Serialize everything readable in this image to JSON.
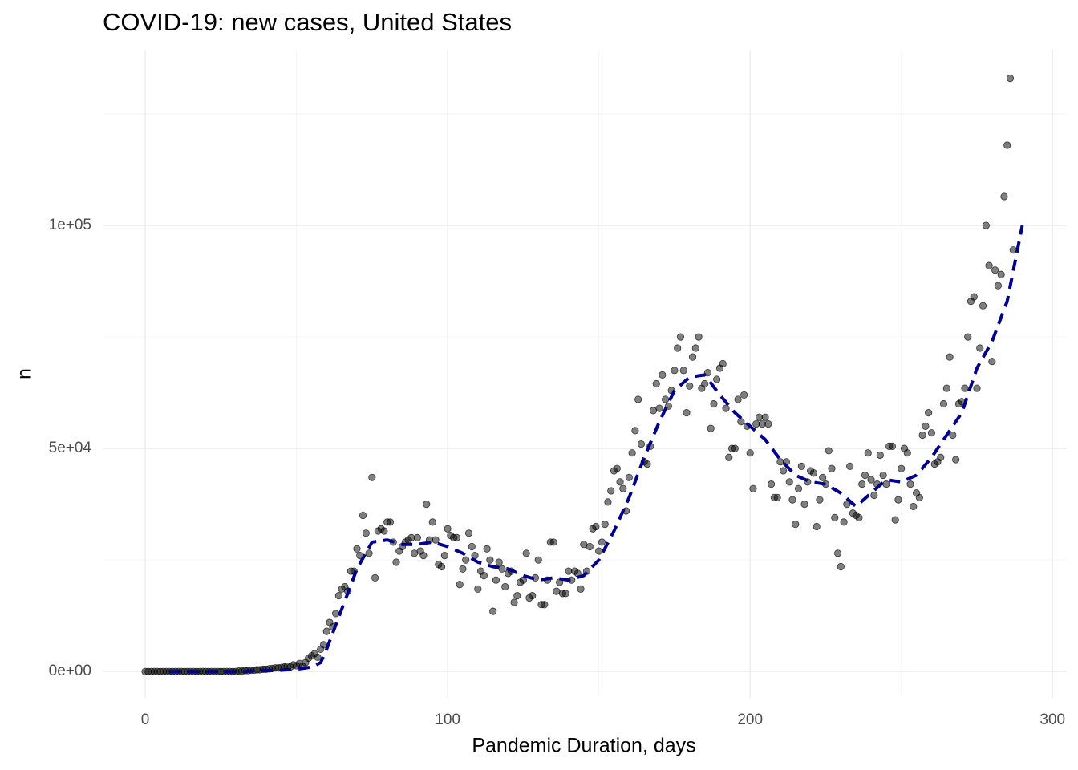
{
  "chart_data": {
    "type": "scatter",
    "title": "COVID-19: new cases, United States",
    "x_label": "Pandemic Duration, days",
    "y_label": "n",
    "xlim": [
      -14.06,
      304.7
    ],
    "ylim": [
      -5900,
      139400
    ],
    "xticks": [
      0,
      100,
      200,
      300
    ],
    "yticks": [
      {
        "value": 0,
        "label": "0e+00"
      },
      {
        "value": 50000,
        "label": "5e+04"
      },
      {
        "value": 100000,
        "label": "1e+05"
      }
    ],
    "minor_xticks": [
      50,
      150,
      250
    ],
    "minor_yticks": [
      25000,
      75000,
      125000
    ],
    "grid": true,
    "color": "#000000",
    "x": [
      0,
      1,
      2,
      3,
      4,
      5,
      6,
      7,
      8,
      9,
      10,
      11,
      12,
      13,
      14,
      15,
      16,
      17,
      18,
      19,
      20,
      21,
      22,
      23,
      24,
      25,
      26,
      27,
      28,
      29,
      30,
      31,
      32,
      33,
      34,
      35,
      36,
      37,
      38,
      39,
      40,
      41,
      42,
      43,
      44,
      45,
      46,
      47,
      48,
      49,
      50,
      51,
      52,
      53,
      54,
      55,
      56,
      57,
      58,
      59,
      60,
      61,
      62,
      63,
      64,
      65,
      66,
      67,
      68,
      69,
      70,
      71,
      72,
      73,
      74,
      75,
      76,
      77,
      78,
      79,
      80,
      81,
      82,
      83,
      84,
      85,
      86,
      87,
      88,
      89,
      90,
      91,
      92,
      93,
      94,
      95,
      96,
      97,
      98,
      99,
      100,
      101,
      102,
      103,
      104,
      105,
      106,
      107,
      108,
      109,
      110,
      111,
      112,
      113,
      114,
      115,
      116,
      117,
      118,
      119,
      120,
      121,
      122,
      123,
      124,
      125,
      126,
      127,
      128,
      129,
      130,
      131,
      132,
      133,
      134,
      135,
      136,
      137,
      138,
      139,
      140,
      141,
      142,
      143,
      144,
      145,
      146,
      147,
      148,
      149,
      150,
      151,
      152,
      153,
      154,
      155,
      156,
      157,
      158,
      159,
      160,
      161,
      162,
      163,
      164,
      165,
      166,
      167,
      168,
      169,
      170,
      171,
      172,
      173,
      174,
      175,
      176,
      177,
      178,
      179,
      180,
      181,
      182,
      183,
      184,
      185,
      186,
      187,
      188,
      189,
      190,
      191,
      192,
      193,
      194,
      195,
      196,
      197,
      198,
      199,
      200,
      201,
      202,
      203,
      204,
      205,
      206,
      207,
      208,
      209,
      210,
      211,
      212,
      213,
      214,
      215,
      216,
      217,
      218,
      219,
      220,
      221,
      222,
      223,
      224,
      225,
      226,
      227,
      228,
      229,
      230,
      231,
      232,
      233,
      234,
      235,
      236,
      237,
      238,
      239,
      240,
      241,
      242,
      243,
      244,
      245,
      246,
      247,
      248,
      249,
      250,
      251,
      252,
      253,
      254,
      255,
      256,
      257,
      258,
      259,
      260,
      261,
      262,
      263,
      264,
      265,
      266,
      267,
      268,
      269,
      270,
      271,
      272,
      273,
      274,
      275,
      276,
      277,
      278,
      279,
      280,
      281,
      282,
      283,
      284,
      285,
      286,
      287
    ],
    "values": [
      0,
      0,
      0,
      0,
      0,
      0,
      0,
      0,
      0,
      0,
      0,
      0,
      0,
      0,
      0,
      0,
      0,
      0,
      0,
      0,
      0,
      0,
      0,
      0,
      0,
      0,
      0,
      0,
      0,
      0,
      0,
      100,
      100,
      200,
      200,
      300,
      300,
      400,
      400,
      500,
      500,
      600,
      700,
      800,
      800,
      900,
      1000,
      1200,
      1000,
      1500,
      1300,
      1800,
      1200,
      2000,
      3000,
      3500,
      4000,
      3200,
      5000,
      6000,
      9000,
      11000,
      10000,
      13000,
      17000,
      18500,
      19000,
      18000,
      22500,
      22500,
      27500,
      26000,
      35000,
      31000,
      26500,
      43500,
      21000,
      31500,
      32000,
      31500,
      33500,
      33500,
      29000,
      24500,
      27000,
      28000,
      29000,
      29500,
      30000,
      26500,
      30000,
      27000,
      26000,
      37500,
      29500,
      33500,
      29500,
      24000,
      23500,
      26000,
      32000,
      30500,
      30000,
      30000,
      19500,
      23000,
      25000,
      31000,
      28000,
      26000,
      18500,
      22500,
      21500,
      27500,
      25000,
      13500,
      20500,
      24500,
      23000,
      19000,
      22000,
      22500,
      15500,
      17000,
      20000,
      20500,
      26500,
      16500,
      17000,
      21000,
      25000,
      15000,
      15000,
      20500,
      29000,
      29000,
      18000,
      20000,
      17500,
      17500,
      22500,
      20500,
      22500,
      22000,
      18500,
      28500,
      22500,
      28000,
      32000,
      32500,
      27000,
      29000,
      33000,
      38000,
      40500,
      45000,
      45500,
      42500,
      41000,
      36000,
      43500,
      49000,
      54000,
      61000,
      51000,
      47000,
      46500,
      50500,
      58500,
      64500,
      59000,
      66500,
      61000,
      59500,
      63000,
      67500,
      72500,
      75000,
      67500,
      58000,
      64000,
      70500,
      72500,
      75000,
      63500,
      64500,
      67000,
      54500,
      60000,
      65500,
      68000,
      69000,
      59000,
      48000,
      50000,
      50000,
      61000,
      56000,
      62000,
      55000,
      49000,
      41000,
      55500,
      57000,
      55500,
      57000,
      55500,
      42000,
      39000,
      39000,
      47000,
      45000,
      47000,
      42500,
      38500,
      33000,
      41000,
      46000,
      37500,
      42500,
      45000,
      44500,
      32500,
      38500,
      43500,
      42000,
      49500,
      45500,
      34500,
      26500,
      23500,
      33500,
      37500,
      46000,
      35500,
      35000,
      34500,
      42000,
      44000,
      49000,
      43000,
      39500,
      42000,
      48500,
      44000,
      42000,
      50500,
      50500,
      34000,
      38500,
      45500,
      50000,
      49000,
      42000,
      37000,
      40000,
      39000,
      53000,
      55000,
      58000,
      53500,
      46500,
      47000,
      48000,
      60000,
      63500,
      70500,
      53000,
      47500,
      60000,
      60500,
      63500,
      75000,
      83000,
      84000,
      63500,
      72500,
      82000,
      100000,
      91000,
      69500,
      90000,
      86500,
      89000,
      106500,
      118000,
      133000,
      94500
    ],
    "trend": {
      "color": "#00008b",
      "x": [
        8,
        15,
        20,
        25,
        30,
        35,
        40,
        45,
        50,
        55,
        58,
        60,
        65,
        70,
        75,
        80,
        85,
        90,
        95,
        100,
        105,
        110,
        115,
        120,
        125,
        130,
        135,
        140,
        145,
        150,
        155,
        160,
        165,
        170,
        175,
        180,
        185,
        190,
        195,
        200,
        205,
        210,
        215,
        220,
        225,
        230,
        235,
        240,
        245,
        250,
        255,
        260,
        265,
        270,
        275,
        280,
        285,
        290
      ],
      "values": [
        0,
        0,
        0,
        0,
        0,
        100,
        200,
        300,
        500,
        1000,
        2000,
        5000,
        14000,
        23000,
        29000,
        29500,
        28500,
        28500,
        29000,
        28000,
        26500,
        24500,
        23500,
        23000,
        21500,
        20500,
        21000,
        20500,
        21500,
        25000,
        31500,
        39000,
        48000,
        56000,
        63000,
        66000,
        66500,
        62000,
        58000,
        55000,
        52000,
        47500,
        44000,
        42500,
        42000,
        40000,
        37000,
        40000,
        43000,
        42500,
        44000,
        48000,
        53000,
        58000,
        68000,
        74000,
        83000,
        100000
      ]
    }
  }
}
